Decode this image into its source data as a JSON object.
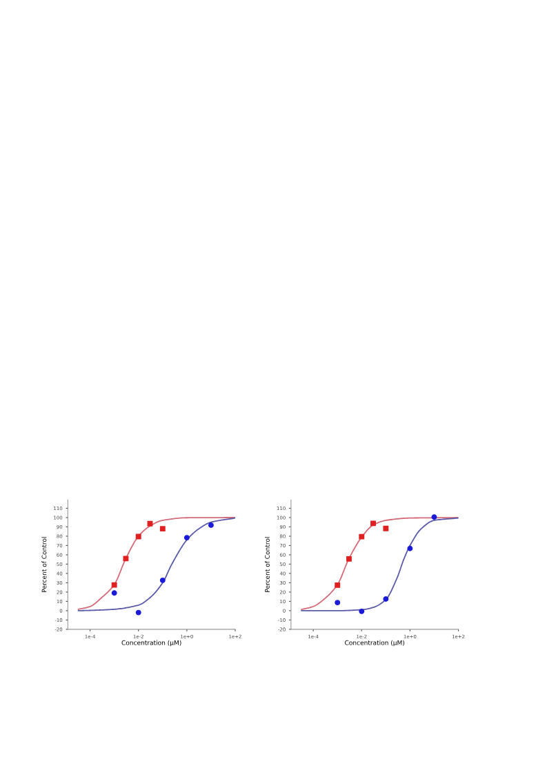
{
  "chart_data": [
    {
      "type": "scatter",
      "xlabel": "Concentration (μM)",
      "ylabel": "Percent of Control",
      "log": "x",
      "grid": false,
      "legend": false,
      "xlim": [
        1.2e-05,
        100
      ],
      "xticks": [
        {
          "value": 0.0001,
          "label": "1e-4"
        },
        {
          "value": 0.01,
          "label": "1e-2"
        },
        {
          "value": 1,
          "label": "1e+0"
        },
        {
          "value": 100,
          "label": "1e+2"
        }
      ],
      "ylim": [
        -20,
        119
      ],
      "yticks": [
        -20,
        -10,
        0,
        10,
        20,
        30,
        40,
        50,
        60,
        70,
        80,
        90,
        100,
        110
      ],
      "series": [
        {
          "type": "line",
          "color": "#d46a78",
          "marker": "none",
          "x": [
            3.3e-05,
            0.0001,
            0.0003,
            0.001,
            0.003,
            0.01,
            0.03,
            0.1,
            1,
            100
          ],
          "values": [
            1.5,
            4.5,
            14,
            28,
            56,
            80,
            91,
            97,
            99.8,
            100
          ]
        },
        {
          "type": "line",
          "color": "#5a5aa8",
          "marker": "none",
          "x": [
            3.3e-05,
            0.0001,
            0.001,
            0.01,
            0.03,
            0.1,
            0.24,
            1,
            3.16,
            10,
            100
          ],
          "values": [
            0,
            0.3,
            1.5,
            6,
            14,
            30,
            50,
            76,
            88,
            95,
            99.5
          ]
        },
        {
          "color": "#e02020",
          "marker": "square",
          "x": [
            0.001,
            0.003,
            0.01,
            0.03,
            0.1
          ],
          "values": [
            27.6,
            56,
            79.6,
            93.5,
            88
          ]
        },
        {
          "color": "#1a1ad8",
          "marker": "circle",
          "x": [
            0.001,
            0.01,
            0.1,
            1,
            10
          ],
          "values": [
            19,
            -2,
            32.6,
            78.4,
            91.8
          ]
        }
      ]
    },
    {
      "type": "scatter",
      "xlabel": "Concentration (μM)",
      "ylabel": "Percent of Control",
      "log": "x",
      "grid": false,
      "legend": false,
      "xlim": [
        1.2e-05,
        100
      ],
      "xticks": [
        {
          "value": 0.0001,
          "label": "1e-4"
        },
        {
          "value": 0.01,
          "label": "1e-2"
        },
        {
          "value": 1,
          "label": "1e+0"
        },
        {
          "value": 100,
          "label": "1e+2"
        }
      ],
      "ylim": [
        -20,
        119
      ],
      "yticks": [
        -20,
        -10,
        0,
        10,
        20,
        30,
        40,
        50,
        60,
        70,
        80,
        90,
        100,
        110
      ],
      "series": [
        {
          "type": "line",
          "color": "#d46a78",
          "marker": "none",
          "x": [
            3.3e-05,
            0.0001,
            0.0003,
            0.001,
            0.003,
            0.01,
            0.03,
            0.1,
            1,
            100
          ],
          "values": [
            1.3,
            4.5,
            13,
            28,
            56,
            79,
            92,
            97,
            99.5,
            100
          ]
        },
        {
          "type": "line",
          "color": "#5a5aa8",
          "marker": "none",
          "x": [
            3.3e-05,
            0.001,
            0.01,
            0.03,
            0.1,
            0.29,
            0.55,
            1,
            2.9,
            10,
            100
          ],
          "values": [
            0,
            0,
            1,
            3.5,
            12,
            35,
            55,
            70,
            88,
            97,
            99.5
          ]
        },
        {
          "color": "#e02020",
          "marker": "square",
          "x": [
            0.001,
            0.003,
            0.01,
            0.03,
            0.1
          ],
          "values": [
            27.4,
            55.6,
            79.5,
            93.8,
            88.3
          ]
        },
        {
          "color": "#1a1ad8",
          "marker": "circle",
          "x": [
            0.001,
            0.01,
            0.1,
            1,
            10
          ],
          "values": [
            8.7,
            -0.7,
            12.5,
            66.8,
            100.5
          ]
        }
      ]
    }
  ]
}
